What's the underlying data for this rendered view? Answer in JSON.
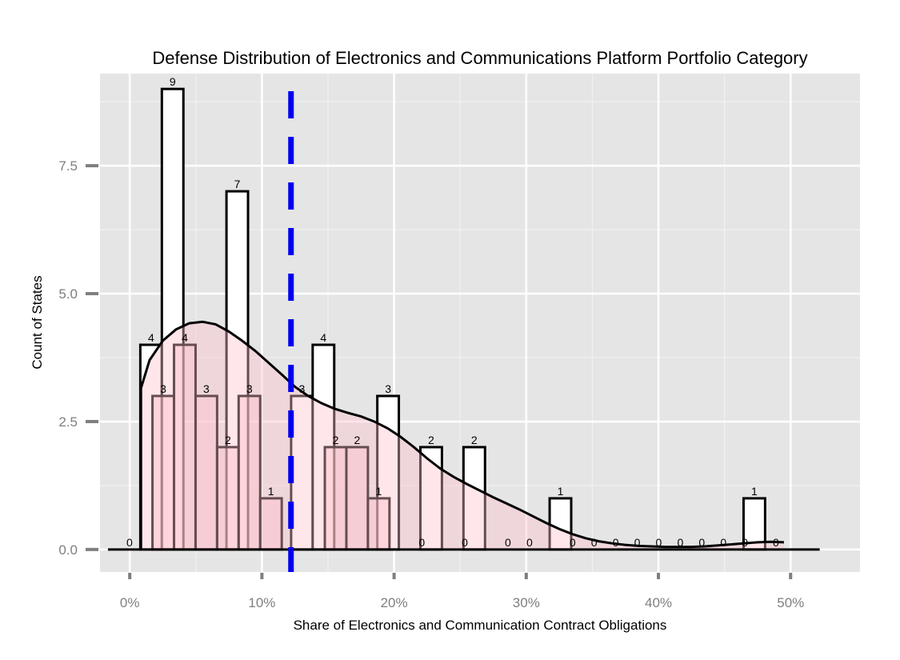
{
  "chart_data": {
    "type": "bar",
    "title": "Defense Distribution of Electronics and Communications Platform Portfolio Category",
    "xlabel": "Share of Electronics and Communication Contract Obligations",
    "ylabel": "Count of States",
    "xlim": [
      -0.0225,
      0.5525
    ],
    "ylim": [
      -0.44,
      9.3
    ],
    "x_ticks": [
      0.0,
      0.1,
      0.2,
      0.3,
      0.4,
      0.5
    ],
    "x_tick_labels": [
      "0%",
      "10%",
      "20%",
      "30%",
      "40%",
      "50%"
    ],
    "y_ticks": [
      0.0,
      2.5,
      5.0,
      7.5
    ],
    "y_tick_labels": [
      "0.0",
      "2.5",
      "5.0",
      "7.5"
    ],
    "grid": true,
    "colors": {
      "panel": "#e5e5e5",
      "grid": "#ffffff",
      "bar_fill": "#ffffff",
      "bar_stroke": "#000000",
      "density_fill": "#ffc0cb",
      "density_stroke": "#000000",
      "mean_line": "#0000ee",
      "tick": "#7f7f7f"
    },
    "histogram_a": {
      "bin_width": 0.0163,
      "start": -0.0083,
      "counts": [
        0,
        4,
        9,
        0,
        0,
        7,
        0,
        0,
        3,
        4,
        0,
        0,
        3,
        0,
        2,
        0,
        2,
        0,
        0,
        0,
        1,
        0,
        0,
        0,
        0,
        0,
        0,
        0,
        0,
        1,
        0
      ]
    },
    "histogram_b": {
      "bin_width": 0.0163,
      "start": 0.0009,
      "counts": [
        0,
        3,
        4,
        3,
        2,
        3,
        1,
        0,
        0,
        2,
        2,
        1,
        0,
        0,
        0,
        0,
        0,
        0,
        0,
        0,
        0,
        0,
        0,
        0,
        0,
        0,
        0,
        0,
        0,
        0
      ],
      "labels": [
        null,
        "3",
        "4",
        "3",
        "2",
        "3",
        "1",
        null,
        null,
        "2",
        "2",
        "1",
        null,
        "0",
        null,
        "0",
        null,
        "0",
        "0",
        null,
        "0",
        "0",
        "0",
        "0",
        "0",
        "0",
        "0",
        "0",
        "0",
        null
      ]
    },
    "histogram_a_labels": [
      "0",
      "4",
      "9",
      null,
      null,
      "7",
      null,
      null,
      "3",
      "4",
      null,
      null,
      "3",
      null,
      "2",
      null,
      "2",
      null,
      null,
      null,
      "1",
      null,
      null,
      null,
      null,
      null,
      null,
      null,
      null,
      "1",
      "0"
    ],
    "density": {
      "x": [
        0.0085,
        0.015,
        0.025,
        0.035,
        0.045,
        0.055,
        0.065,
        0.075,
        0.085,
        0.095,
        0.105,
        0.115,
        0.125,
        0.135,
        0.145,
        0.155,
        0.165,
        0.175,
        0.185,
        0.195,
        0.205,
        0.215,
        0.225,
        0.235,
        0.245,
        0.255,
        0.265,
        0.275,
        0.285,
        0.295,
        0.305,
        0.315,
        0.325,
        0.335,
        0.345,
        0.355,
        0.365,
        0.375,
        0.385,
        0.395,
        0.405,
        0.415,
        0.425,
        0.435,
        0.445,
        0.455,
        0.465,
        0.475,
        0.485,
        0.495
      ],
      "y": [
        3.15,
        3.7,
        4.08,
        4.3,
        4.42,
        4.45,
        4.4,
        4.26,
        4.08,
        3.88,
        3.65,
        3.42,
        3.18,
        3.0,
        2.86,
        2.75,
        2.67,
        2.6,
        2.5,
        2.37,
        2.2,
        2.0,
        1.78,
        1.58,
        1.42,
        1.28,
        1.15,
        1.02,
        0.9,
        0.78,
        0.65,
        0.52,
        0.4,
        0.3,
        0.22,
        0.16,
        0.12,
        0.09,
        0.07,
        0.06,
        0.05,
        0.05,
        0.05,
        0.06,
        0.08,
        0.1,
        0.12,
        0.14,
        0.15,
        0.14
      ]
    },
    "mean_line_x": 0.122
  }
}
